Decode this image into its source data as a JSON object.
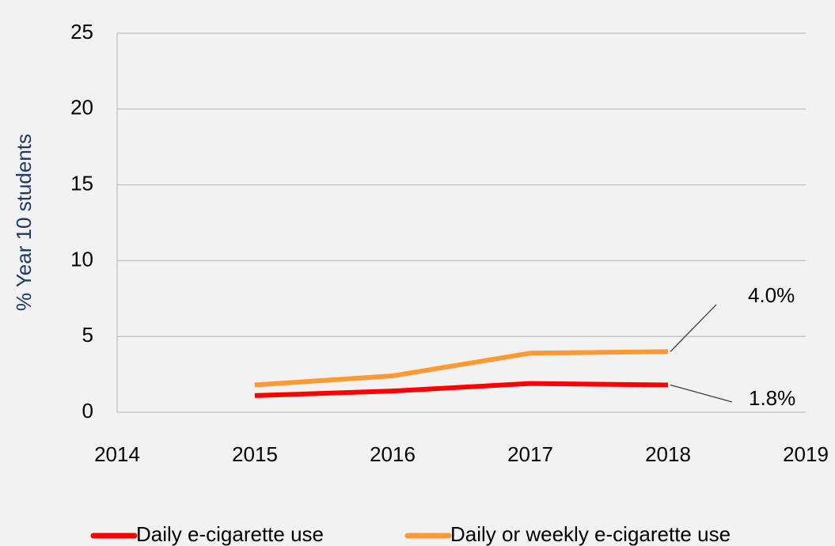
{
  "chart_data": {
    "type": "line",
    "y_label": "% Year 10 students",
    "xlim": [
      2014,
      2019
    ],
    "xticks": [
      2014,
      2015,
      2016,
      2017,
      2018,
      2019
    ],
    "ylim": [
      0,
      25
    ],
    "yticks": [
      0,
      5,
      10,
      15,
      20,
      25
    ],
    "grid": true,
    "legend": "bottom",
    "series": [
      {
        "name": "Daily e-cigarette use",
        "color": "#ff0000",
        "x": [
          2015,
          2016,
          2017,
          2018
        ],
        "values": [
          1.1,
          1.4,
          1.9,
          1.8
        ],
        "value_labels": [
          null,
          null,
          null,
          "1.8%"
        ]
      },
      {
        "name": "Daily or weekly e-cigarette use",
        "color": "#ff9933",
        "x": [
          2015,
          2016,
          2017,
          2018
        ],
        "values": [
          1.8,
          2.4,
          3.9,
          4.0
        ],
        "value_labels": [
          null,
          null,
          null,
          "4.0%"
        ]
      }
    ]
  }
}
